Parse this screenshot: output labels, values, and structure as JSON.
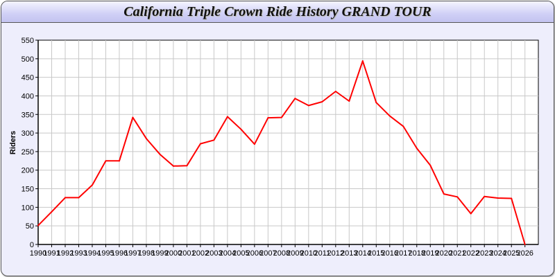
{
  "chart_data": {
    "type": "line",
    "title": "California Triple Crown Ride History GRAND TOUR",
    "xlabel": "",
    "ylabel": "Riders",
    "x": [
      1990,
      1991,
      1992,
      1993,
      1994,
      1995,
      1996,
      1997,
      1998,
      1999,
      2000,
      2001,
      2002,
      2003,
      2004,
      2005,
      2006,
      2007,
      2008,
      2009,
      2010,
      2011,
      2012,
      2013,
      2014,
      2015,
      2016,
      2017,
      2018,
      2019,
      2020,
      2021,
      2022,
      2023,
      2024,
      2025,
      2026
    ],
    "series": [
      {
        "values": [
          51,
          88,
          126,
          126,
          160,
          225,
          225,
          342,
          285,
          243,
          211,
          212,
          271,
          281,
          344,
          310,
          270,
          341,
          342,
          393,
          374,
          384,
          412,
          386,
          494,
          382,
          346,
          318,
          259,
          213,
          136,
          128,
          83,
          129,
          125,
          124,
          0
        ],
        "color": "#ff0000"
      }
    ],
    "ylim": [
      0,
      550
    ],
    "yticks": [
      0,
      50,
      100,
      150,
      200,
      250,
      300,
      350,
      400,
      450,
      500,
      550
    ],
    "grid": true,
    "legend": "none"
  }
}
